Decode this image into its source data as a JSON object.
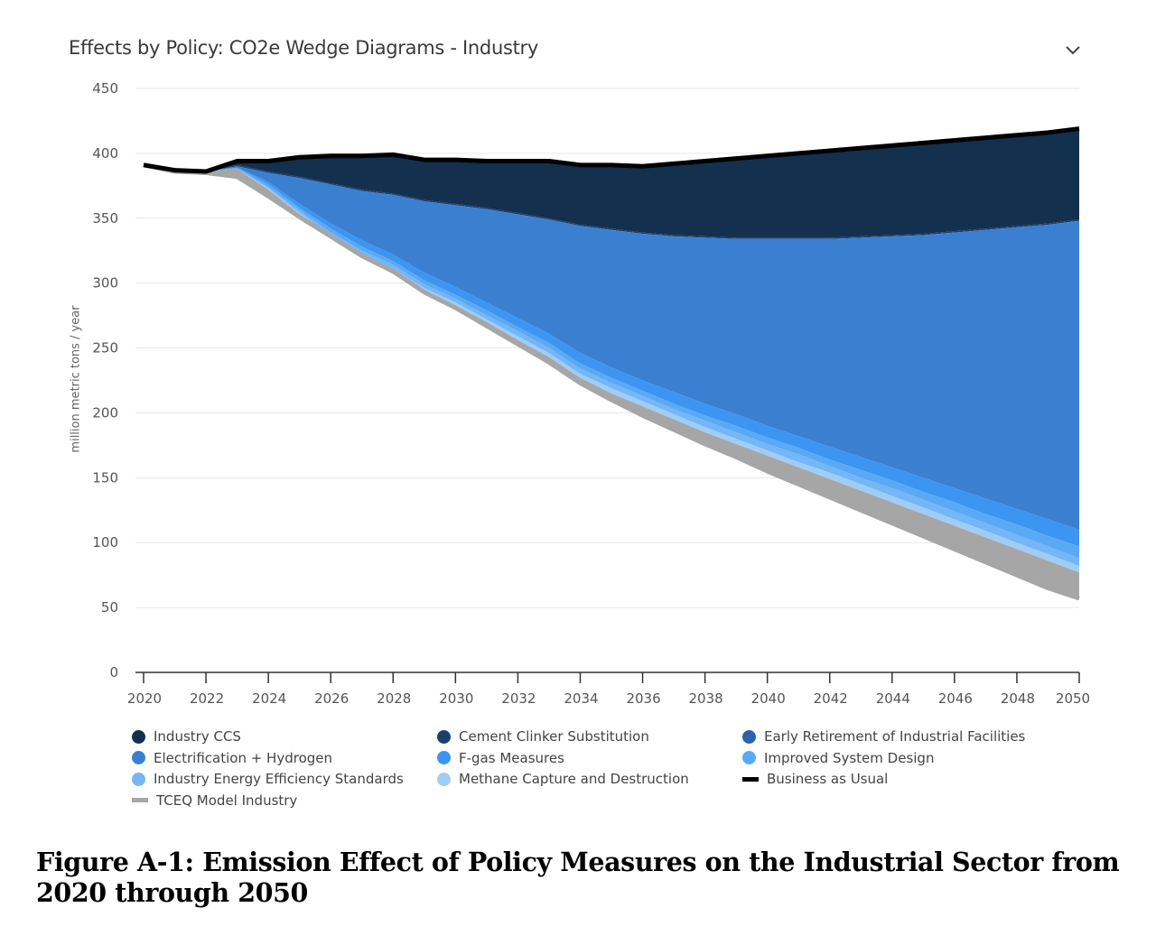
{
  "header": {
    "title": "Effects by Policy: CO2e Wedge Diagrams - Industry",
    "toggle_icon": "chevron-down-icon"
  },
  "figure_caption": "Figure A-1: Emission Effect of Policy Measures on the Industrial Sector from 2020 through 2050",
  "chart_data": {
    "type": "area",
    "title": "Effects by Policy: CO2e Wedge Diagrams - Industry",
    "xlabel": "",
    "ylabel": "million metric tons / year",
    "xlim": [
      2020,
      2050
    ],
    "ylim": [
      0,
      450
    ],
    "xticks": [
      "2020",
      "2022",
      "2024",
      "2026",
      "2028",
      "2030",
      "2032",
      "2034",
      "2036",
      "2038",
      "2040",
      "2042",
      "2044",
      "2046",
      "2048",
      "2050"
    ],
    "yticks": [
      "0",
      "50",
      "100",
      "150",
      "200",
      "250",
      "300",
      "350",
      "400",
      "450"
    ],
    "grid": "horizontal",
    "legend_position": "bottom",
    "x": [
      2020,
      2021,
      2022,
      2023,
      2024,
      2025,
      2026,
      2027,
      2028,
      2029,
      2030,
      2031,
      2032,
      2033,
      2034,
      2035,
      2036,
      2037,
      2038,
      2039,
      2040,
      2041,
      2042,
      2043,
      2044,
      2045,
      2046,
      2047,
      2048,
      2049,
      2050
    ],
    "series": [
      {
        "name": "Business as Usual",
        "color": "#000000",
        "values": [
          391,
          387,
          386,
          394,
          394,
          397,
          398,
          398,
          399,
          395,
          395,
          394,
          394,
          394,
          391,
          391,
          390,
          392,
          394,
          396,
          398,
          400,
          402,
          404,
          406,
          408,
          410,
          412,
          414,
          416,
          419
        ]
      },
      {
        "name": "Industry CCS",
        "color": "#13304f",
        "values": [
          391,
          387,
          386,
          391,
          386,
          382,
          377,
          372,
          369,
          364,
          361,
          358,
          354,
          350,
          345,
          342,
          339,
          337,
          336,
          335,
          335,
          335,
          335,
          336,
          337,
          338,
          340,
          342,
          344,
          346,
          349
        ]
      },
      {
        "name": "Cement Clinker Substitution",
        "color": "#1b3f6b",
        "values": [
          391,
          387,
          386,
          390,
          385,
          381,
          376,
          371,
          368,
          363,
          360,
          357,
          353,
          349,
          344,
          341,
          338,
          336,
          335,
          334,
          334,
          334,
          334,
          335,
          336,
          337,
          339,
          341,
          343,
          345,
          348
        ]
      },
      {
        "name": "Early Retirement of Industrial Facilities",
        "color": "#2a62ad",
        "values": [
          391,
          387,
          386,
          390,
          385,
          381,
          376,
          371,
          368,
          363,
          360,
          357,
          353,
          349,
          344,
          341,
          338,
          336,
          335,
          334,
          334,
          334,
          334,
          335,
          336,
          337,
          339,
          341,
          343,
          345,
          348
        ]
      },
      {
        "name": "Electrification + Hydrogen",
        "color": "#3b7fd1",
        "values": [
          391,
          387,
          386,
          389,
          378,
          361,
          346,
          333,
          322,
          308,
          297,
          285,
          273,
          261,
          246,
          235,
          225,
          216,
          207,
          199,
          190,
          182,
          174,
          166,
          158,
          150,
          142,
          134,
          126,
          118,
          110
        ]
      },
      {
        "name": "F-gas Measures",
        "color": "#3d95f2",
        "values": [
          391,
          387,
          386,
          389,
          376,
          358,
          342,
          328,
          317,
          302,
          291,
          279,
          266,
          254,
          238,
          227,
          217,
          207,
          198,
          190,
          181,
          173,
          164,
          156,
          148,
          139,
          131,
          122,
          114,
          105,
          97
        ]
      },
      {
        "name": "Improved System Design",
        "color": "#5aa9f4",
        "values": [
          391,
          387,
          386,
          388,
          374,
          356,
          339,
          325,
          314,
          299,
          288,
          275,
          263,
          250,
          234,
          223,
          213,
          203,
          194,
          185,
          176,
          168,
          159,
          150,
          142,
          133,
          124,
          115,
          106,
          97,
          88
        ]
      },
      {
        "name": "Industry Energy Efficiency Standards",
        "color": "#74b6f6",
        "values": [
          391,
          387,
          386,
          388,
          373,
          354,
          337,
          322,
          311,
          296,
          285,
          272,
          259,
          246,
          230,
          219,
          209,
          199,
          189,
          180,
          171,
          162,
          154,
          145,
          136,
          127,
          118,
          109,
          100,
          91,
          82
        ]
      },
      {
        "name": "Methane Capture and Destruction",
        "color": "#9fcdf8",
        "values": [
          391,
          387,
          386,
          388,
          372,
          353,
          335,
          320,
          309,
          294,
          283,
          270,
          256,
          243,
          227,
          215,
          205,
          195,
          185,
          176,
          167,
          158,
          149,
          140,
          131,
          122,
          113,
          104,
          95,
          86,
          77
        ]
      },
      {
        "name": "TCEQ Model Industry",
        "color": "#a6a6a6",
        "values": [
          391,
          386,
          385,
          382,
          367,
          351,
          336,
          321,
          309,
          293,
          281,
          267,
          253,
          239,
          223,
          210,
          198,
          187,
          176,
          166,
          155,
          145,
          135,
          125,
          115,
          105,
          95,
          85,
          75,
          65,
          57
        ]
      }
    ]
  },
  "legend": {
    "items": [
      {
        "label": "Industry CCS",
        "color": "#13304f",
        "marker": "dot"
      },
      {
        "label": "Cement Clinker Substitution",
        "color": "#1b3f6b",
        "marker": "dot"
      },
      {
        "label": "Early Retirement of Industrial Facilities",
        "color": "#2a62ad",
        "marker": "dot"
      },
      {
        "label": "Electrification + Hydrogen",
        "color": "#3b7fd1",
        "marker": "dot"
      },
      {
        "label": "F-gas Measures",
        "color": "#3d95f2",
        "marker": "dot"
      },
      {
        "label": "Improved System Design",
        "color": "#5aa9f4",
        "marker": "dot"
      },
      {
        "label": "Industry Energy Efficiency Standards",
        "color": "#74b6f6",
        "marker": "dot"
      },
      {
        "label": "Methane Capture and Destruction",
        "color": "#9fcdf8",
        "marker": "dot"
      },
      {
        "label": "Business as Usual",
        "color": "#000000",
        "marker": "line"
      },
      {
        "label": "TCEQ Model Industry",
        "color": "#a6a6a6",
        "marker": "line"
      }
    ]
  }
}
